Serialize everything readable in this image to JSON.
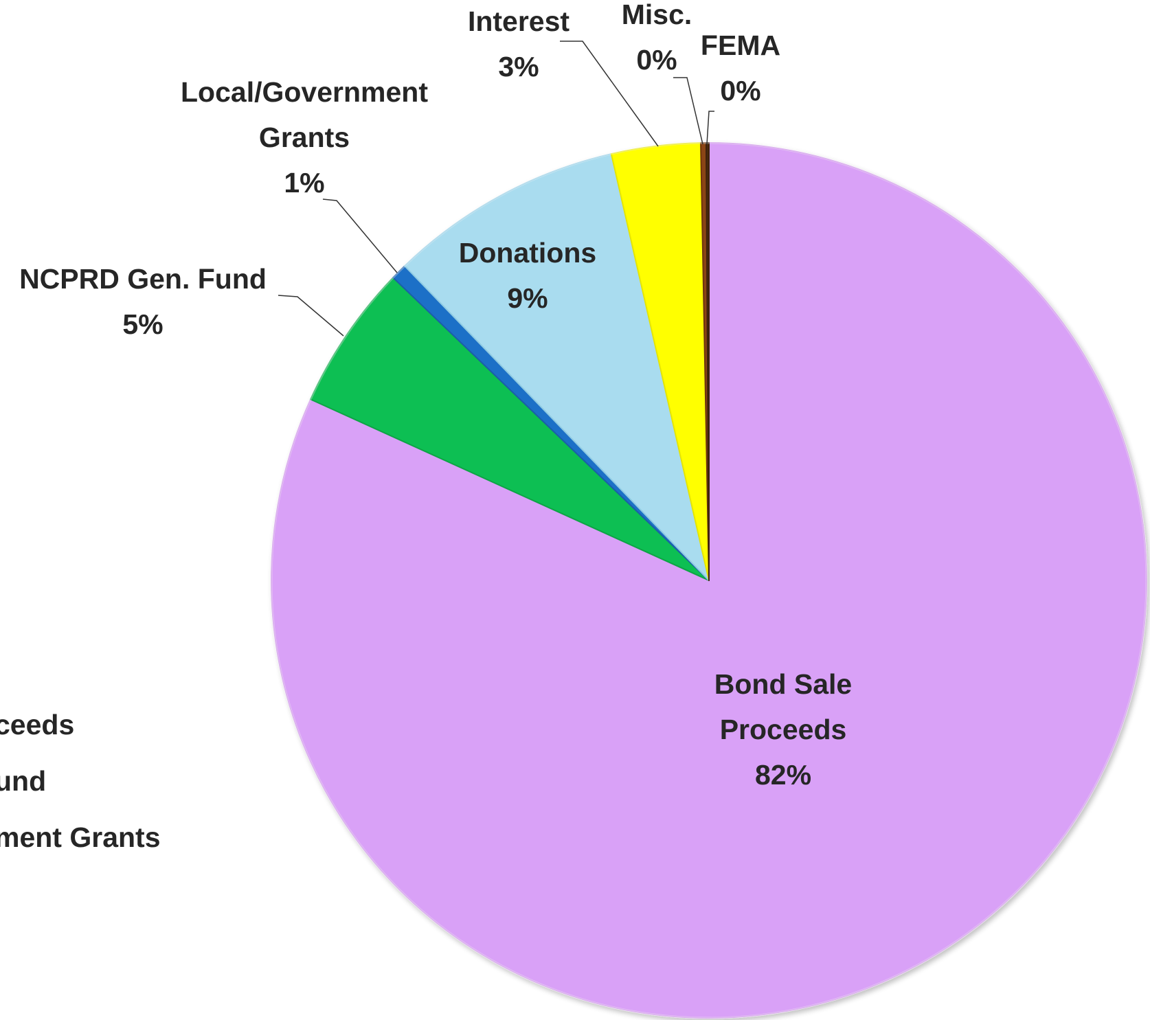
{
  "chart_data": {
    "type": "pie",
    "start_angle_deg": 0,
    "direction": "clockwise",
    "slices": [
      {
        "label_lines": [
          "Bond Sale",
          "Proceeds"
        ],
        "pct_label": "82%",
        "value": 82.2,
        "color": "#d9a1f7",
        "edge": "#c98be6",
        "label_pos": "inside"
      },
      {
        "label_lines": [
          "NCPRD Gen. Fund"
        ],
        "pct_label": "5%",
        "value": 5.4,
        "color": "#0ebf52",
        "edge": "#0aa444",
        "label_pos": "outside"
      },
      {
        "label_lines": [
          "Local/Government",
          "Grants"
        ],
        "pct_label": "1%",
        "value": 0.6,
        "color": "#1f6fc7",
        "edge": "#1a5ea8",
        "label_pos": "outside"
      },
      {
        "label_lines": [
          "Donations"
        ],
        "pct_label": "9%",
        "value": 8.7,
        "color": "#a9dcef",
        "edge": "#8fcbe3",
        "label_pos": "inside"
      },
      {
        "label_lines": [
          "Interest"
        ],
        "pct_label": "3%",
        "value": 3.3,
        "color": "#ffff00",
        "edge": "#e6e600",
        "label_pos": "outside"
      },
      {
        "label_lines": [
          "Misc."
        ],
        "pct_label": "0%",
        "value": 0.2,
        "color": "#8b4513",
        "edge": "#6e360f",
        "label_pos": "outside"
      },
      {
        "label_lines": [
          "FEMA"
        ],
        "pct_label": "0%",
        "value": 0.1,
        "color": "#4a2a0a",
        "edge": "#3a2008",
        "label_pos": "outside"
      }
    ],
    "legend": {
      "placement": "left (partially cropped)",
      "entries": [
        "ceeds",
        "und",
        "ment Grants"
      ]
    }
  }
}
